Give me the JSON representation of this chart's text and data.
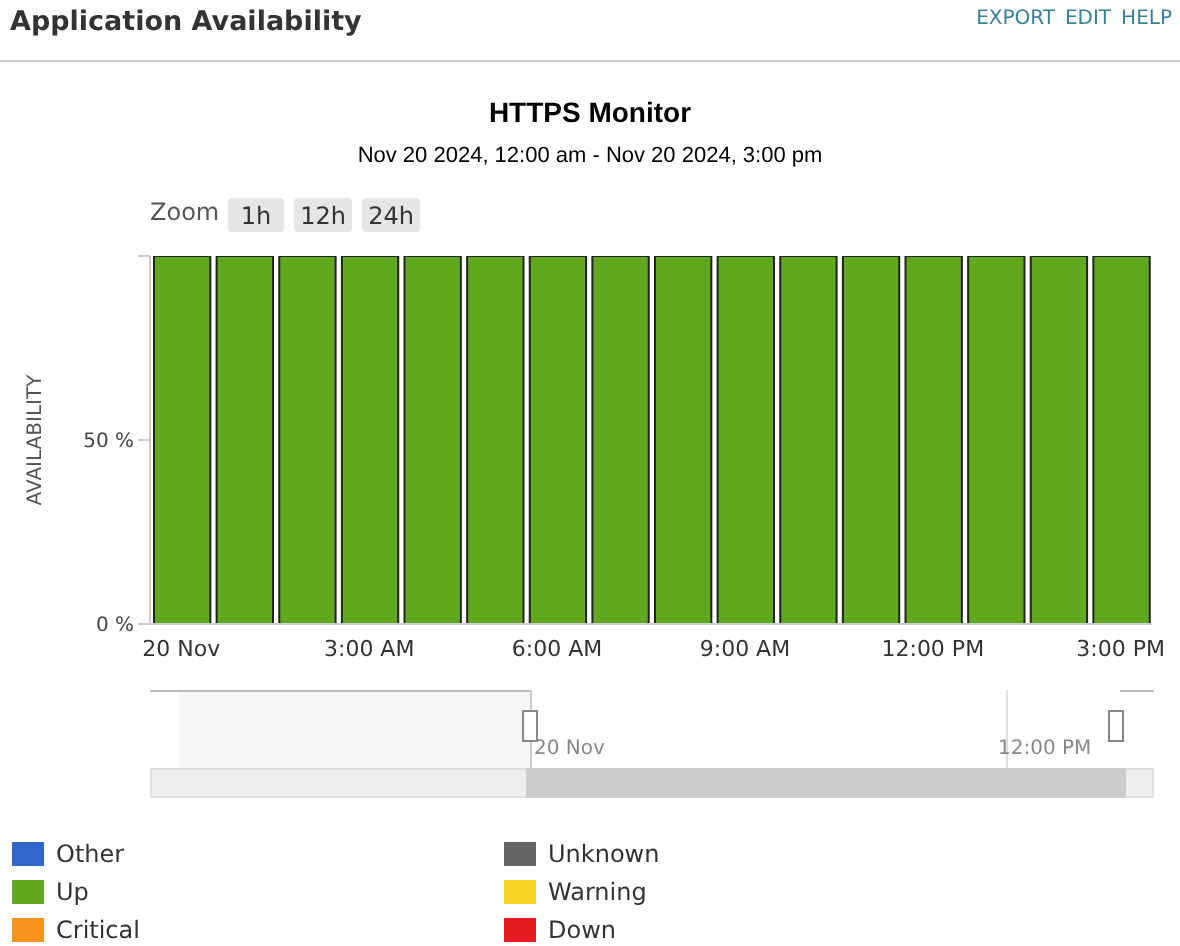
{
  "chart_data": {
    "type": "bar",
    "stacked": true,
    "title": "HTTPS Monitor",
    "subtitle": "Nov 20 2024, 12:00 am - Nov 20 2024, 3:00 pm",
    "ylabel": "AVAILABILITY",
    "x": [
      0,
      1,
      2,
      3,
      4,
      5,
      6,
      7,
      8,
      9,
      10,
      11,
      12,
      13,
      14,
      15
    ],
    "xlim": [
      -0.5,
      15.5
    ],
    "xticks": [
      {
        "value": 0,
        "label": "20 Nov"
      },
      {
        "value": 3,
        "label": "3:00 AM"
      },
      {
        "value": 6,
        "label": "6:00 AM"
      },
      {
        "value": 9,
        "label": "9:00 AM"
      },
      {
        "value": 12,
        "label": "12:00 PM"
      },
      {
        "value": 15,
        "label": "3:00 PM"
      }
    ],
    "ylim": [
      0,
      100
    ],
    "yticks": [
      {
        "value": 0,
        "label": "0 %"
      },
      {
        "value": 50,
        "label": "50 %"
      },
      {
        "value": 100,
        "label": null
      }
    ],
    "series": [
      {
        "name": "Other",
        "color": "#3366cc",
        "values": [
          0,
          0,
          0,
          0,
          0,
          0,
          0,
          0,
          0,
          0,
          0,
          0,
          0,
          0,
          0,
          0
        ]
      },
      {
        "name": "Up",
        "color": "#62a81f",
        "values": [
          100,
          100,
          100,
          100,
          100,
          100,
          100,
          100,
          100,
          100,
          100,
          100,
          100,
          100,
          100,
          100
        ]
      },
      {
        "name": "Critical",
        "color": "#f7941d",
        "values": [
          0,
          0,
          0,
          0,
          0,
          0,
          0,
          0,
          0,
          0,
          0,
          0,
          0,
          0,
          0,
          0
        ]
      },
      {
        "name": "Unknown",
        "color": "#666666",
        "values": [
          0,
          0,
          0,
          0,
          0,
          0,
          0,
          0,
          0,
          0,
          0,
          0,
          0,
          0,
          0,
          0
        ]
      },
      {
        "name": "Warning",
        "color": "#f5d327",
        "values": [
          0,
          0,
          0,
          0,
          0,
          0,
          0,
          0,
          0,
          0,
          0,
          0,
          0,
          0,
          0,
          0
        ]
      },
      {
        "name": "Down",
        "color": "#e41b23",
        "values": [
          0,
          0,
          0,
          0,
          0,
          0,
          0,
          0,
          0,
          0,
          0,
          0,
          0,
          0,
          0,
          0
        ]
      }
    ],
    "legend": "bottom",
    "annotations": [
      "Application Availability",
      "EXPORT",
      "EDIT",
      "HELP",
      "Zoom",
      "1h",
      "12h",
      "24h",
      "20 Nov",
      "12:00 PM"
    ]
  }
}
